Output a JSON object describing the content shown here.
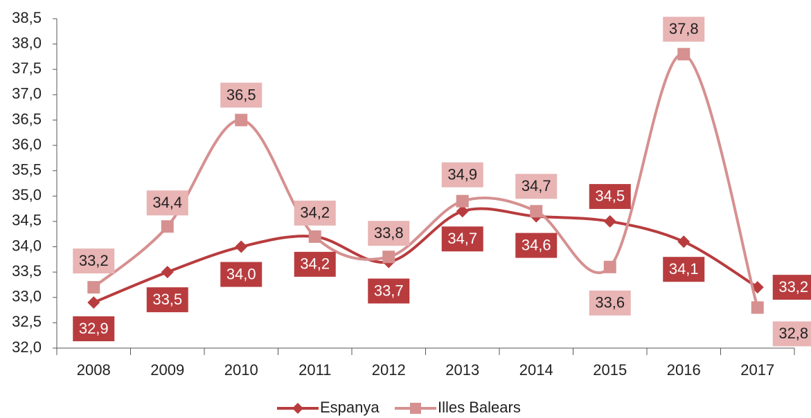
{
  "chart_data": {
    "type": "line",
    "categories": [
      "2008",
      "2009",
      "2010",
      "2011",
      "2012",
      "2013",
      "2014",
      "2015",
      "2016",
      "2017"
    ],
    "series": [
      {
        "name": "Espanya",
        "color": "#b83c3e",
        "label_color": "#ffffff",
        "values": [
          32.9,
          33.5,
          34.0,
          34.2,
          33.7,
          34.7,
          34.6,
          34.5,
          34.1,
          33.2
        ],
        "value_labels": [
          "32,9",
          "33,5",
          "34,0",
          "34,2",
          "33,7",
          "34,7",
          "34,6",
          "34,5",
          "34,1",
          "33,2"
        ]
      },
      {
        "name": "Illes Balears",
        "color": "#d69090",
        "label_color": "#222222",
        "values": [
          33.2,
          34.4,
          36.5,
          34.2,
          33.8,
          34.9,
          34.7,
          33.6,
          37.8,
          32.8
        ],
        "value_labels": [
          "33,2",
          "34,4",
          "36,5",
          "34,2",
          "33,8",
          "34,9",
          "34,7",
          "33,6",
          "37,8",
          "32,8"
        ]
      }
    ],
    "ylim": [
      32.0,
      38.5
    ],
    "yticks": [
      {
        "value": 32.0,
        "label": "32,0"
      },
      {
        "value": 32.5,
        "label": "32,5"
      },
      {
        "value": 33.0,
        "label": "33,0"
      },
      {
        "value": 33.5,
        "label": "33,5"
      },
      {
        "value": 34.0,
        "label": "34,0"
      },
      {
        "value": 34.5,
        "label": "34,5"
      },
      {
        "value": 35.0,
        "label": "35,0"
      },
      {
        "value": 35.5,
        "label": "35,5"
      },
      {
        "value": 36.0,
        "label": "36,0"
      },
      {
        "value": 36.5,
        "label": "36,5"
      },
      {
        "value": 37.0,
        "label": "37,0"
      },
      {
        "value": 37.5,
        "label": "37,5"
      },
      {
        "value": 38.0,
        "label": "38,0"
      },
      {
        "value": 38.5,
        "label": "38,5"
      }
    ],
    "grid": false,
    "legend": "bottom"
  }
}
